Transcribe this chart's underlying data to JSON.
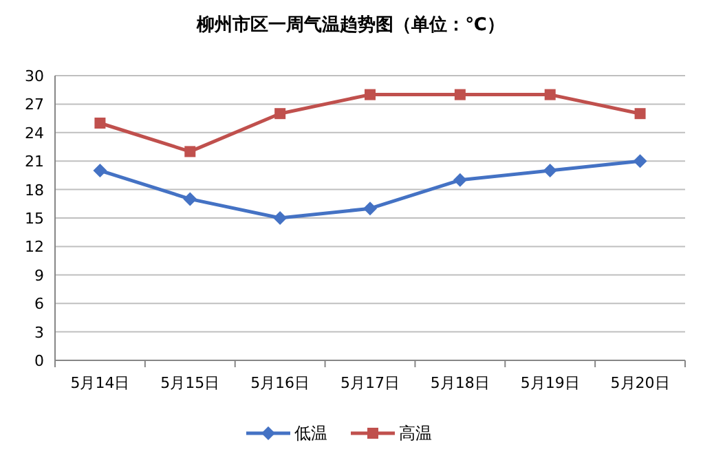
{
  "chart_data": {
    "type": "line",
    "title": "柳州市区一周气温趋势图（单位：℃）",
    "categories": [
      "5月14日",
      "5月15日",
      "5月16日",
      "5月17日",
      "5月18日",
      "5月19日",
      "5月20日"
    ],
    "series": [
      {
        "name": "低温",
        "color": "#4472c4",
        "marker": "diamond",
        "values": [
          20,
          17,
          15,
          16,
          19,
          20,
          21
        ]
      },
      {
        "name": "高温",
        "color": "#c0504d",
        "marker": "square",
        "values": [
          25,
          22,
          26,
          28,
          28,
          28,
          26
        ]
      }
    ],
    "ylim": [
      0,
      30
    ],
    "yticks": [
      0,
      3,
      6,
      9,
      12,
      15,
      18,
      21,
      24,
      27,
      30
    ],
    "grid": "y",
    "legend": "bottom"
  }
}
